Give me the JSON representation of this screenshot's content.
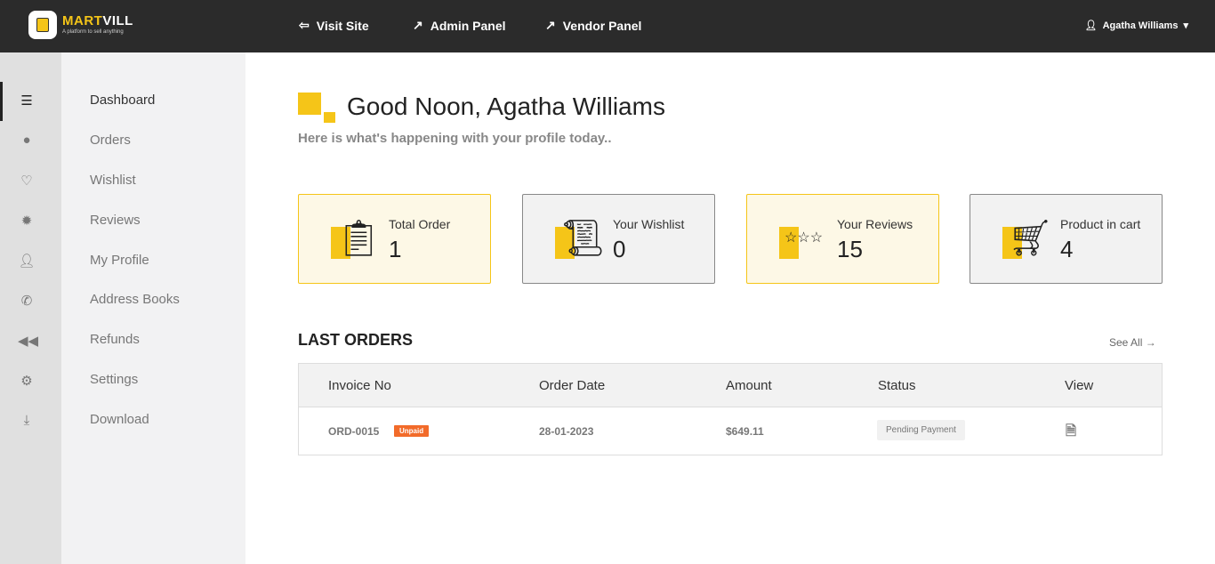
{
  "header": {
    "brand_a": "MART",
    "brand_b": "VILL",
    "tagline": "A platform to sell anything",
    "nav": [
      {
        "label": "Visit Site",
        "icon": "sign-in-icon"
      },
      {
        "label": "Admin Panel",
        "icon": "external-link-icon"
      },
      {
        "label": "Vendor Panel",
        "icon": "external-link-icon"
      }
    ],
    "user": "Agatha Williams"
  },
  "sidebar": {
    "items": [
      "Dashboard",
      "Orders",
      "Wishlist",
      "Reviews",
      "My Profile",
      "Address Books",
      "Refunds",
      "Settings",
      "Download"
    ],
    "icons": [
      "list-icon",
      "apple-icon",
      "heart-icon",
      "badge-icon",
      "user-icon",
      "phone-icon",
      "backward-icon",
      "gear-icon",
      "download-icon"
    ]
  },
  "greeting": {
    "title": "Good Noon, Agatha Williams",
    "subtitle": "Here is what's happening with your profile today.."
  },
  "cards": [
    {
      "label": "Total Order",
      "value": "1"
    },
    {
      "label": "Your Wishlist",
      "value": "0"
    },
    {
      "label": "Your Reviews",
      "value": "15"
    },
    {
      "label": "Product in cart",
      "value": "4"
    }
  ],
  "orders": {
    "title": "LAST ORDERS",
    "see_all": "See All →",
    "columns": [
      "Invoice No",
      "Order Date",
      "Amount",
      "Status",
      "View"
    ],
    "rows": [
      {
        "invoice": "ORD-0015",
        "payment": "Unpaid",
        "date": "28-01-2023",
        "amount": "$649.11",
        "status": "Pending Payment"
      }
    ]
  },
  "colors": {
    "accent": "#f5c518",
    "header": "#2b2b2b",
    "unpaid": "#f26b2a"
  }
}
